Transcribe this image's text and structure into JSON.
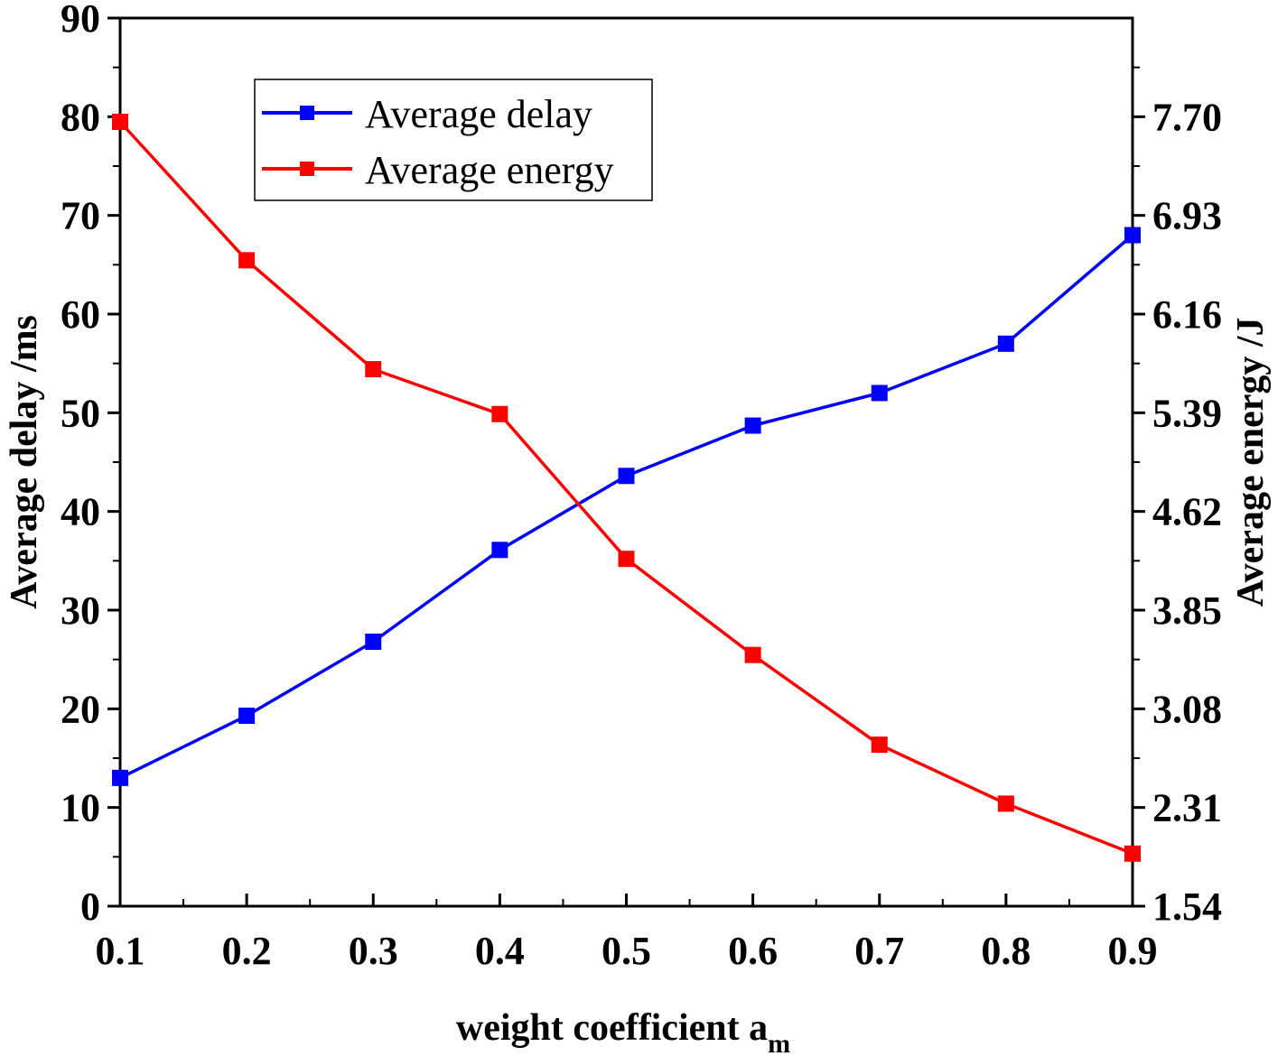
{
  "chart_data": {
    "type": "line",
    "x": [
      0.1,
      0.2,
      0.3,
      0.4,
      0.5,
      0.6,
      0.7,
      0.8,
      0.9
    ],
    "x_ticks": [
      "0.1",
      "0.2",
      "0.3",
      "0.4",
      "0.5",
      "0.6",
      "0.7",
      "0.8",
      "0.9"
    ],
    "xlim": [
      0.1,
      0.9
    ],
    "xlabel": "weight coefficient a",
    "xlabel_subscript": "m",
    "ylabel_left": "Average delay /ms",
    "ylabel_right": "Average energy  /J",
    "ylim_left": [
      0,
      90
    ],
    "ylim_right": [
      1.54,
      8.47
    ],
    "yticks_left": [
      "0",
      "10",
      "20",
      "30",
      "40",
      "50",
      "60",
      "70",
      "80",
      "90"
    ],
    "yticks_right": [
      "1.54",
      "2.31",
      "3.08",
      "3.85",
      "4.62",
      "5.39",
      "6.16",
      "6.93",
      "7.70"
    ],
    "yticks_right_values": [
      1.54,
      2.31,
      3.08,
      3.85,
      4.62,
      5.39,
      6.16,
      6.93,
      7.7
    ],
    "series": [
      {
        "name": "Average delay",
        "axis": "left",
        "color": "#0000ff",
        "values": [
          13.0,
          19.3,
          26.8,
          36.1,
          43.6,
          48.7,
          52.0,
          57.0,
          68.0
        ]
      },
      {
        "name": "Average energy",
        "axis": "right",
        "color": "#ff0000",
        "values": [
          7.66,
          6.58,
          5.73,
          5.38,
          4.25,
          3.5,
          2.8,
          2.34,
          1.95
        ]
      }
    ],
    "legend": {
      "position": "top-left",
      "entries": [
        "Average delay",
        "Average energy"
      ]
    }
  }
}
